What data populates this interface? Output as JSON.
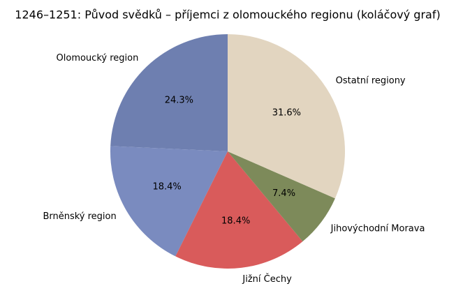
{
  "chart_data": {
    "type": "pie",
    "title": "1246–1251: Původ svědků – příjemci z olomouckého regionu (koláčový graf)",
    "categories": [
      "Olomoucký region",
      "Brněnský region",
      "Jižní Čechy",
      "Jihovýchodní Morava",
      "Ostatní regiony"
    ],
    "values": [
      24.3,
      18.4,
      18.4,
      7.4,
      31.6
    ],
    "value_labels": [
      "24.3%",
      "18.4%",
      "18.4%",
      "7.4%",
      "31.6%"
    ],
    "colors": [
      "#6e7fb0",
      "#7a8bbf",
      "#d95b5b",
      "#7d8a5a",
      "#e2d5c0"
    ]
  }
}
